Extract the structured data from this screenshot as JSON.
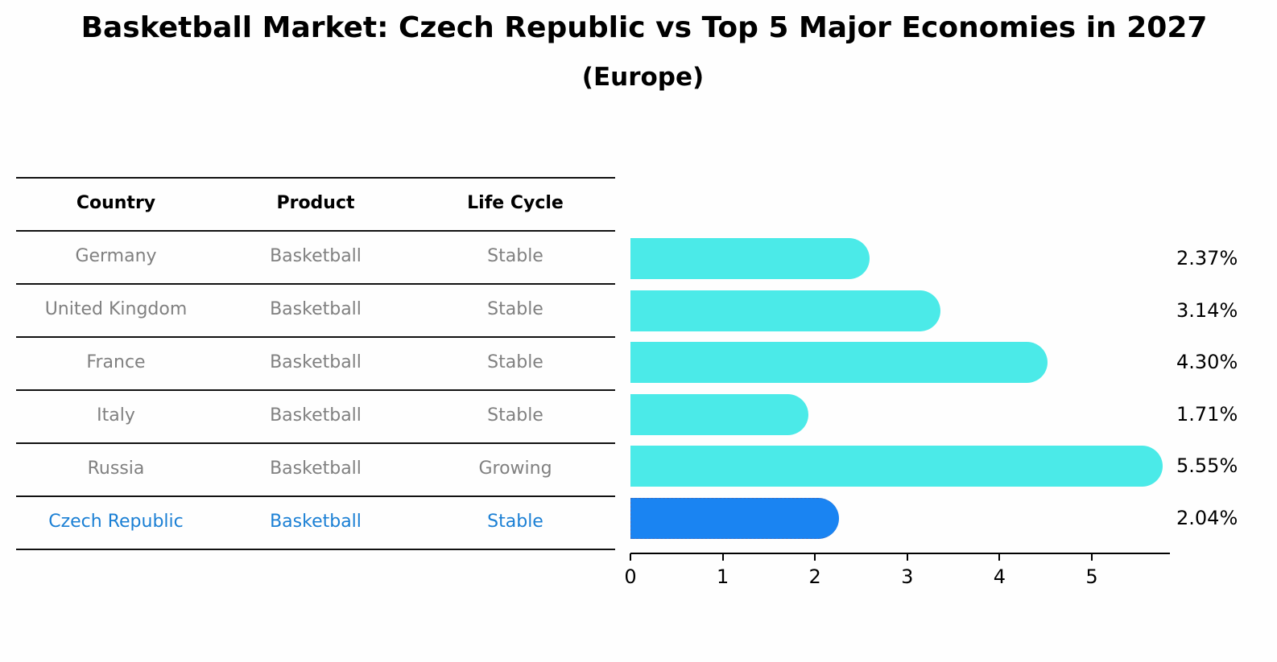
{
  "title": "Basketball Market: Czech Republic vs Top 5 Major Economies in 2027",
  "subtitle": "(Europe)",
  "table": {
    "headers": [
      "Country",
      "Product",
      "Life Cycle"
    ],
    "rows": [
      {
        "country": "Germany",
        "product": "Basketball",
        "life_cycle": "Stable"
      },
      {
        "country": "United Kingdom",
        "product": "Basketball",
        "life_cycle": "Stable"
      },
      {
        "country": "France",
        "product": "Basketball",
        "life_cycle": "Stable"
      },
      {
        "country": "Italy",
        "product": "Basketball",
        "life_cycle": "Stable"
      },
      {
        "country": "Russia",
        "product": "Basketball",
        "life_cycle": "Growing"
      },
      {
        "country": "Czech Republic",
        "product": "Basketball",
        "life_cycle": "Stable"
      }
    ]
  },
  "colors": {
    "bar": "#4beae8",
    "highlight_bar": "#1a84f2",
    "highlight_text": "#1a7fd4",
    "muted_text": "#808080"
  },
  "chart_data": {
    "type": "bar",
    "orientation": "horizontal",
    "title": "Basketball Market: Czech Republic vs Top 5 Major Economies in 2027",
    "subtitle": "(Europe)",
    "categories": [
      "Germany",
      "United Kingdom",
      "France",
      "Italy",
      "Russia",
      "Czech Republic"
    ],
    "values": [
      2.37,
      3.14,
      4.3,
      1.71,
      5.55,
      2.04
    ],
    "value_labels": [
      "2.37%",
      "3.14%",
      "4.30%",
      "1.71%",
      "5.55%",
      "2.04%"
    ],
    "highlight": "Czech Republic",
    "xlabel": "",
    "ylabel": "",
    "xlim": [
      0,
      5.85
    ],
    "xticks": [
      "0",
      "1",
      "2",
      "3",
      "4",
      "5"
    ],
    "grid": false,
    "legend": null
  }
}
